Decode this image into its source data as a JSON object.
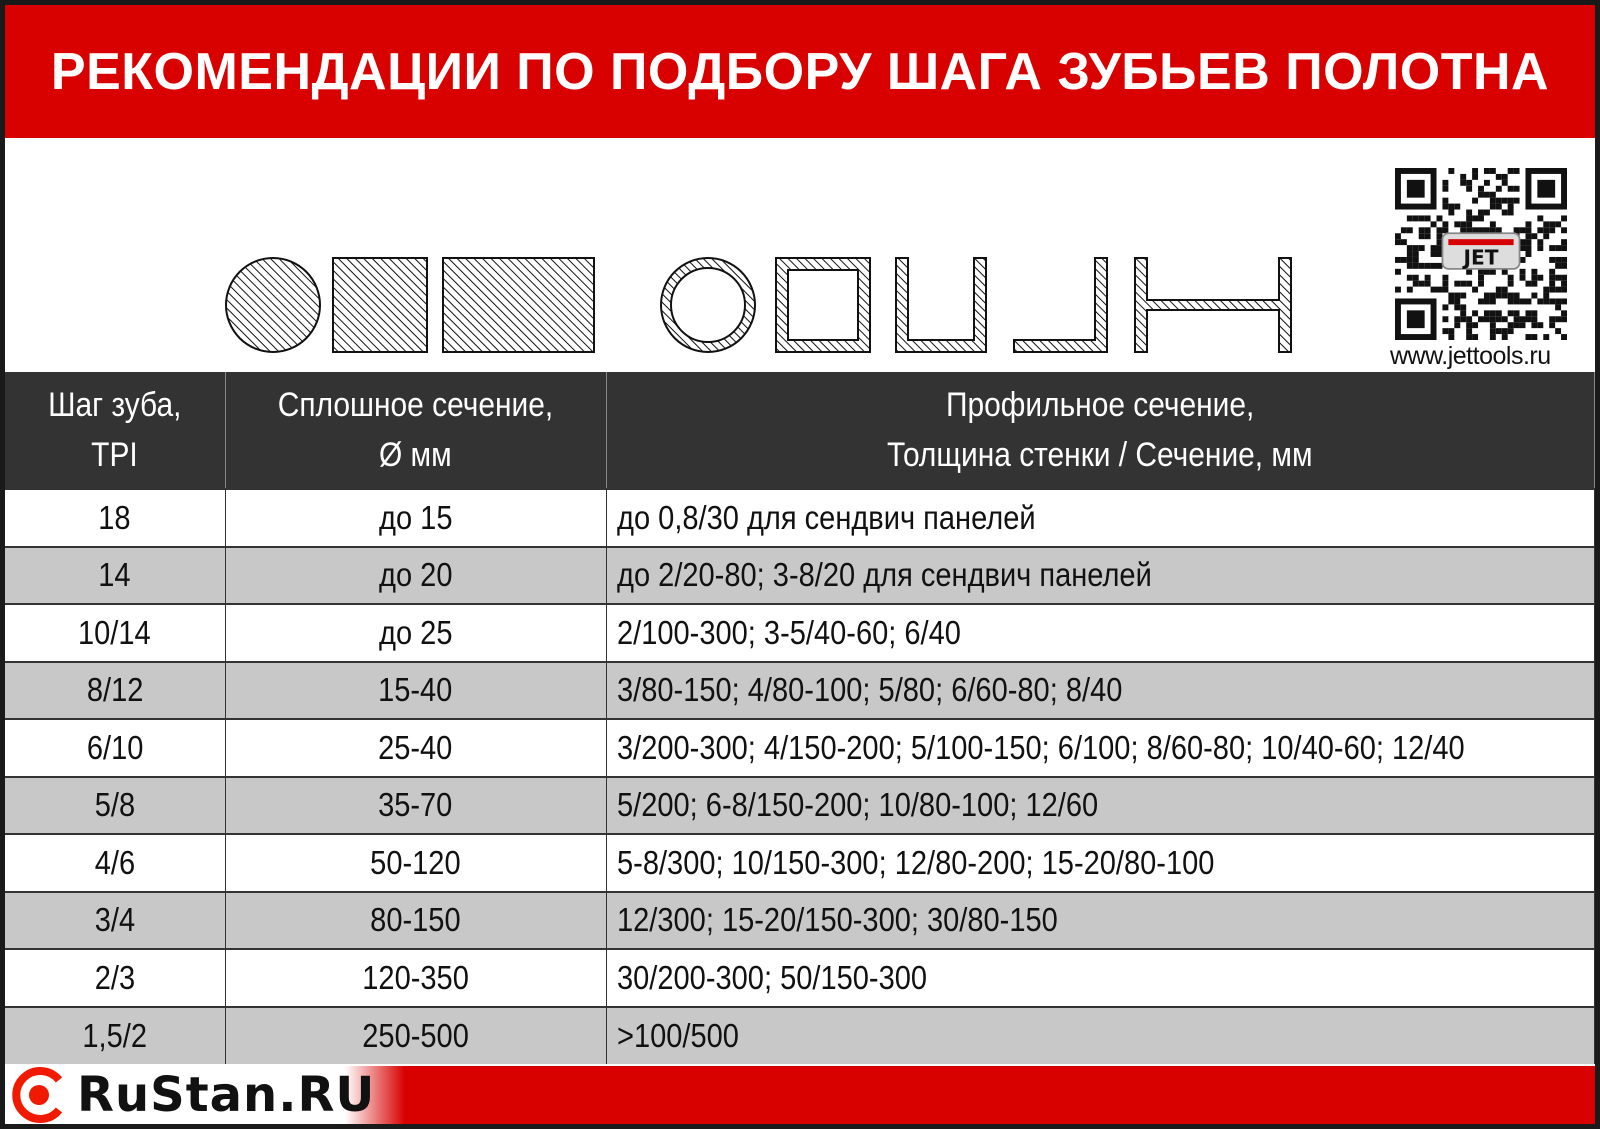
{
  "title": "РЕКОМЕНДАЦИИ ПО ПОДБОРУ ШАГА ЗУБЬЕВ ПОЛОТНА",
  "qr": {
    "brand": "JET",
    "url": "www.jettools.ru"
  },
  "table": {
    "headers": [
      [
        "Шаг зуба,",
        "TPI"
      ],
      [
        "Сплошное сечение,",
        "Ø мм"
      ],
      [
        "Профильное сечение,",
        "Толщина стенки / Сечение, мм"
      ]
    ],
    "rows": [
      [
        "18",
        "до 15",
        "до 0,8/30 для сендвич панелей"
      ],
      [
        "14",
        "до 20",
        "до 2/20-80; 3-8/20 для сендвич панелей"
      ],
      [
        "10/14",
        "до 25",
        "2/100-300; 3-5/40-60;  6/40"
      ],
      [
        "8/12",
        "15-40",
        "3/80-150; 4/80-100; 5/80; 6/60-80; 8/40"
      ],
      [
        "6/10",
        "25-40",
        "3/200-300; 4/150-200; 5/100-150; 6/100; 8/60-80; 10/40-60; 12/40"
      ],
      [
        "5/8",
        "35-70",
        "5/200; 6-8/150-200; 10/80-100; 12/60"
      ],
      [
        "4/6",
        "50-120",
        "5-8/300; 10/150-300; 12/80-200; 15-20/80-100"
      ],
      [
        "3/4",
        "80-150",
        "12/300; 15-20/150-300; 30/80-150"
      ],
      [
        "2/3",
        "120-350",
        "30/200-300; 50/150-300"
      ],
      [
        "1,5/2",
        "250-500",
        ">100/500"
      ]
    ]
  },
  "watermark": "RuStan.RU",
  "colors": {
    "red": "#d90000",
    "header": "#333333",
    "stripe": "#c8c8c8"
  }
}
